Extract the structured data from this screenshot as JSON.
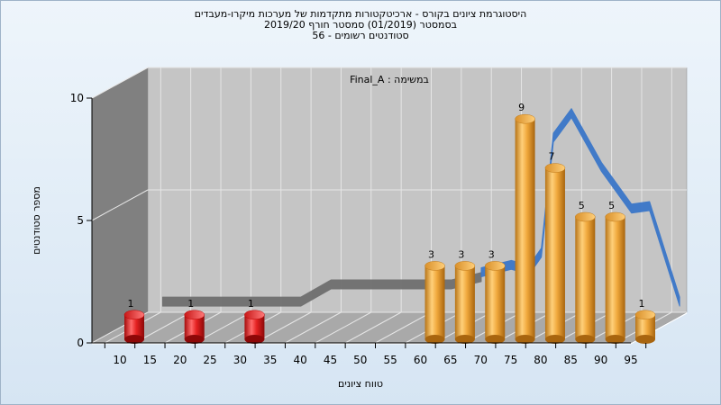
{
  "chart_data": {
    "type": "bar",
    "title_lines": [
      "היסטוגרמת ציונים בקורס - ארכיטקטורות מתקדמות של מערכות מיקרו-מעבדים",
      "בסמסטר  (01/2019)  סמסטר חורף 2019/20",
      "סטודנטים רשומים - 56"
    ],
    "annotation": "במשימה : Final_A",
    "xlabel": "טווח ציונים",
    "ylabel": "מספר סטודנטים",
    "x_ticks": [
      "10",
      "15",
      "20",
      "25",
      "30",
      "35",
      "40",
      "45",
      "50",
      "55",
      "60",
      "65",
      "70",
      "75",
      "80",
      "85",
      "90",
      "95"
    ],
    "y_ticks": [
      0,
      5,
      10
    ],
    "ylim": [
      0,
      10
    ],
    "bars": [
      {
        "x": "10",
        "value": 1,
        "color": "#e52222"
      },
      {
        "x": "20",
        "value": 1,
        "color": "#e52222"
      },
      {
        "x": "30",
        "value": 1,
        "color": "#e52222"
      },
      {
        "x": "60",
        "value": 3,
        "color": "#f0a83c"
      },
      {
        "x": "65",
        "value": 3,
        "color": "#f0a83c"
      },
      {
        "x": "70",
        "value": 3,
        "color": "#f0a83c"
      },
      {
        "x": "75",
        "value": 9,
        "color": "#f0a83c"
      },
      {
        "x": "80",
        "value": 7,
        "color": "#f0a83c"
      },
      {
        "x": "85",
        "value": 5,
        "color": "#f0a83c"
      },
      {
        "x": "90",
        "value": 5,
        "color": "#f0a83c"
      },
      {
        "x": "95",
        "value": 1,
        "color": "#f0a83c"
      }
    ],
    "trend_gray": [
      {
        "x": 12,
        "y": 1.0
      },
      {
        "x": 20,
        "y": 1.0
      },
      {
        "x": 30,
        "y": 1.0
      },
      {
        "x": 35,
        "y": 1.0
      },
      {
        "x": 40,
        "y": 1.7
      },
      {
        "x": 45,
        "y": 1.7
      },
      {
        "x": 50,
        "y": 1.7
      },
      {
        "x": 55,
        "y": 1.7
      },
      {
        "x": 60,
        "y": 1.7
      },
      {
        "x": 65,
        "y": 2.0
      }
    ],
    "trend_blue": [
      {
        "x": 65,
        "y": 2.2
      },
      {
        "x": 70,
        "y": 2.5
      },
      {
        "x": 73,
        "y": 2.3
      },
      {
        "x": 75,
        "y": 3.0
      },
      {
        "x": 77,
        "y": 7.7
      },
      {
        "x": 80,
        "y": 8.7
      },
      {
        "x": 85,
        "y": 6.5
      },
      {
        "x": 90,
        "y": 4.8
      },
      {
        "x": 93,
        "y": 4.9
      },
      {
        "x": 98,
        "y": 1.0
      }
    ],
    "colors": {
      "back_wall": "#c5c5c5",
      "side_wall": "#808080",
      "floor": "#a9a9a9",
      "grid": "#e6e6e6",
      "red_bar": "#e52222",
      "orange_bar": "#f0a83c",
      "gray_trend": "#6f6f6f",
      "blue_trend": "#3a76c9"
    }
  }
}
